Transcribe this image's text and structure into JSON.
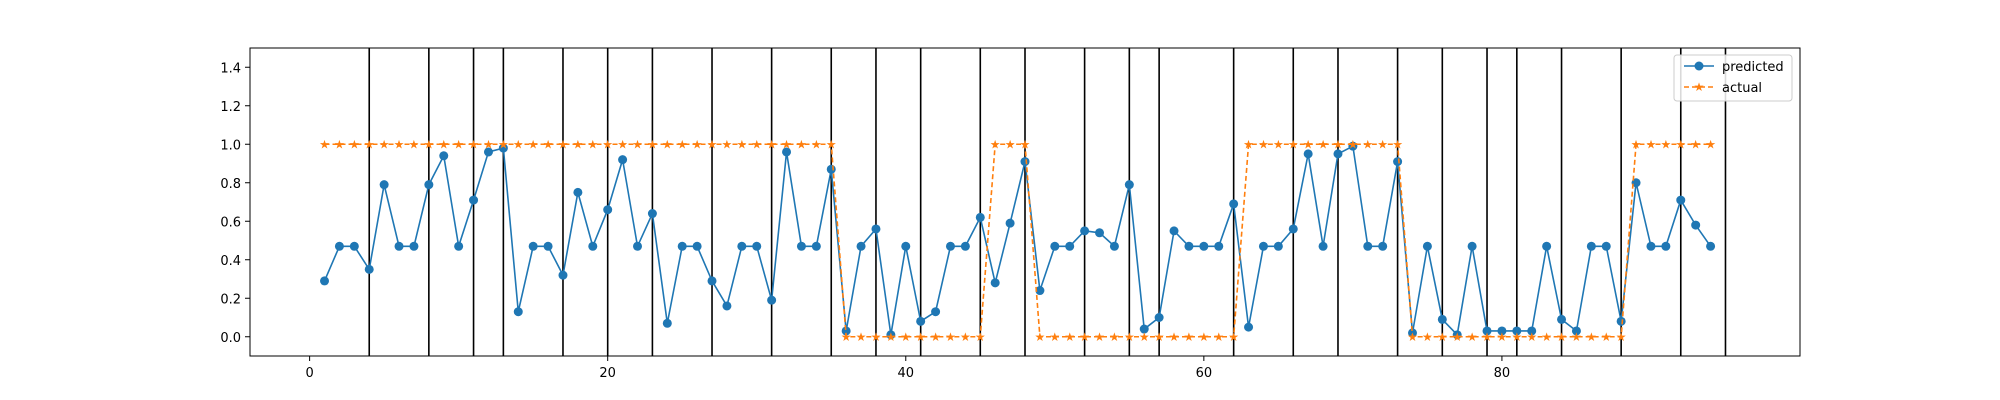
{
  "chart_data": {
    "type": "line",
    "title": "",
    "xlabel": "",
    "ylabel": "",
    "xlim": [
      -4,
      100
    ],
    "ylim": [
      -0.1,
      1.5
    ],
    "xticks": [
      0,
      20,
      40,
      60,
      80
    ],
    "yticks": [
      0.0,
      0.2,
      0.4,
      0.6,
      0.8,
      1.0,
      1.2,
      1.4
    ],
    "xtick_labels": [
      "0",
      "20",
      "40",
      "60",
      "80"
    ],
    "ytick_labels": [
      "0.0",
      "0.2",
      "0.4",
      "0.6",
      "0.8",
      "1.0",
      "1.2",
      "1.4"
    ],
    "grid": false,
    "legend_position": "top-right",
    "x": [
      1,
      2,
      3,
      4,
      5,
      6,
      7,
      8,
      9,
      10,
      11,
      12,
      13,
      14,
      15,
      16,
      17,
      18,
      19,
      20,
      21,
      22,
      23,
      24,
      25,
      26,
      27,
      28,
      29,
      30,
      31,
      32,
      33,
      34,
      35,
      36,
      37,
      38,
      39,
      40,
      41,
      42,
      43,
      44,
      45,
      46,
      47,
      48,
      49,
      50,
      51,
      52,
      53,
      54,
      55,
      56,
      57,
      58,
      59,
      60,
      61,
      62,
      63,
      64,
      65,
      66,
      67,
      68,
      69,
      70,
      71,
      72,
      73,
      74,
      75,
      76,
      77,
      78,
      79,
      80,
      81,
      82,
      83,
      84,
      85,
      86,
      87,
      88,
      89,
      90,
      91,
      92,
      93,
      94
    ],
    "vertical_lines": [
      4,
      8,
      11,
      13,
      17,
      20,
      23,
      27,
      31,
      35,
      38,
      41,
      45,
      48,
      52,
      55,
      57,
      62,
      66,
      69,
      73,
      76,
      79,
      81,
      84,
      88,
      92,
      95
    ],
    "series": [
      {
        "name": "predicted",
        "color": "#1f77b4",
        "marker": "circle",
        "linestyle": "solid",
        "values": [
          0.29,
          0.47,
          0.47,
          0.35,
          0.79,
          0.47,
          0.47,
          0.79,
          0.94,
          0.47,
          0.71,
          0.96,
          0.98,
          0.13,
          0.47,
          0.47,
          0.32,
          0.75,
          0.47,
          0.66,
          0.92,
          0.47,
          0.64,
          0.07,
          0.47,
          0.47,
          0.29,
          0.16,
          0.47,
          0.47,
          0.19,
          0.96,
          0.47,
          0.47,
          0.87,
          0.03,
          0.47,
          0.56,
          0.01,
          0.47,
          0.08,
          0.13,
          0.47,
          0.47,
          0.62,
          0.28,
          0.59,
          0.91,
          0.24,
          0.47,
          0.47,
          0.55,
          0.54,
          0.47,
          0.79,
          0.04,
          0.1,
          0.55,
          0.47,
          0.47,
          0.47,
          0.69,
          0.05,
          0.47,
          0.47,
          0.56,
          0.95,
          0.47,
          0.95,
          0.99,
          0.47,
          0.47,
          0.91,
          0.02,
          0.47,
          0.09,
          0.01,
          0.47,
          0.03,
          0.03,
          0.03,
          0.03,
          0.47,
          0.09,
          0.03,
          0.47,
          0.47,
          0.08,
          0.8,
          0.47,
          0.47,
          0.71,
          0.58,
          0.47
        ]
      },
      {
        "name": "actual",
        "color": "#ff7f0e",
        "marker": "star",
        "linestyle": "dashed",
        "values": [
          1,
          1,
          1,
          1,
          1,
          1,
          1,
          1,
          1,
          1,
          1,
          1,
          1,
          1,
          1,
          1,
          1,
          1,
          1,
          1,
          1,
          1,
          1,
          1,
          1,
          1,
          1,
          1,
          1,
          1,
          1,
          1,
          1,
          1,
          1,
          0,
          0,
          0,
          0,
          0,
          0,
          0,
          0,
          0,
          0,
          1,
          1,
          1,
          0,
          0,
          0,
          0,
          0,
          0,
          0,
          0,
          0,
          0,
          0,
          0,
          0,
          0,
          1,
          1,
          1,
          1,
          1,
          1,
          1,
          1,
          1,
          1,
          1,
          0,
          0,
          0,
          0,
          0,
          0,
          0,
          0,
          0,
          0,
          0,
          0,
          0,
          0,
          0,
          1,
          1,
          1,
          1,
          1,
          1
        ]
      }
    ]
  }
}
